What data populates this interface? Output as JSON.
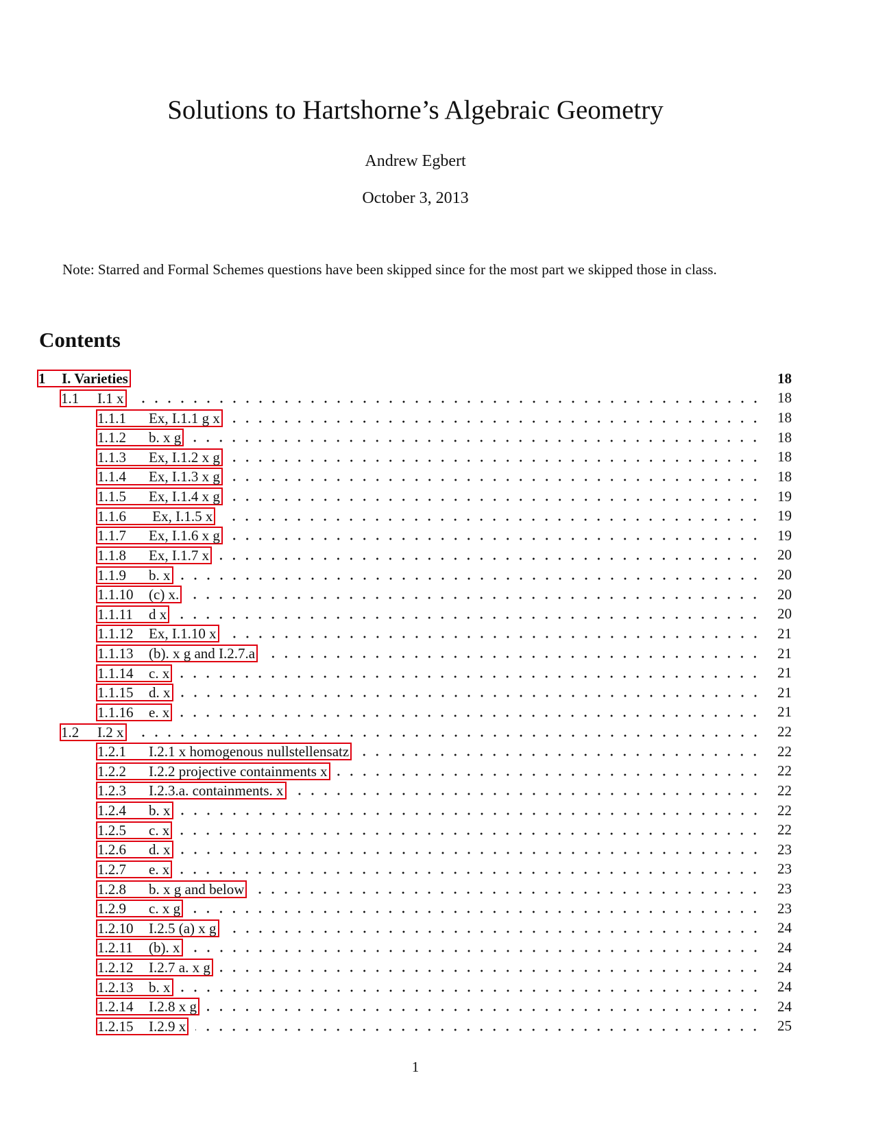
{
  "title": "Solutions to Hartshorne’s Algebraic Geometry",
  "author": "Andrew Egbert",
  "date": "October 3, 2013",
  "note": "Note: Starred and Formal Schemes questions have been skipped since for the most part we skipped those in class.",
  "contents_heading": "Contents",
  "link_border_color": "#e00010",
  "toc": [
    {
      "level": 1,
      "num": "1",
      "title": "I. Varieties",
      "page": "18"
    },
    {
      "level": 2,
      "num": "1.1",
      "title": "I.1 x",
      "page": "18"
    },
    {
      "level": 3,
      "num": "1.1.1",
      "title": "Ex, I.1.1 g x",
      "page": "18"
    },
    {
      "level": 3,
      "num": "1.1.2",
      "title": "b. x g",
      "page": "18"
    },
    {
      "level": 3,
      "num": "1.1.3",
      "title": "Ex, I.1.2 x g",
      "page": "18"
    },
    {
      "level": 3,
      "num": "1.1.4",
      "title": "Ex, I.1.3 x g",
      "page": "18"
    },
    {
      "level": 3,
      "num": "1.1.5",
      "title": "Ex, I.1.4 x g",
      "page": "19"
    },
    {
      "level": 3,
      "num": "1.1.6",
      "title": " Ex, I.1.5 x",
      "page": "19"
    },
    {
      "level": 3,
      "num": "1.1.7",
      "title": "Ex, I.1.6 x g",
      "page": "19"
    },
    {
      "level": 3,
      "num": "1.1.8",
      "title": "Ex, I.1.7 x",
      "page": "20"
    },
    {
      "level": 3,
      "num": "1.1.9",
      "title": "b. x",
      "page": "20"
    },
    {
      "level": 3,
      "num": "1.1.10",
      "title": "(c) x.",
      "page": "20"
    },
    {
      "level": 3,
      "num": "1.1.11",
      "title": "d x",
      "page": "20"
    },
    {
      "level": 3,
      "num": "1.1.12",
      "title": "Ex, I.1.10 x",
      "page": "21"
    },
    {
      "level": 3,
      "num": "1.1.13",
      "title": "(b). x g and I.2.7.a",
      "page": "21"
    },
    {
      "level": 3,
      "num": "1.1.14",
      "title": "c. x",
      "page": "21"
    },
    {
      "level": 3,
      "num": "1.1.15",
      "title": "d. x",
      "page": "21"
    },
    {
      "level": 3,
      "num": "1.1.16",
      "title": "e. x",
      "page": "21"
    },
    {
      "level": 2,
      "num": "1.2",
      "title": "I.2 x",
      "page": "22"
    },
    {
      "level": 3,
      "num": "1.2.1",
      "title": "I.2.1 x homogenous nullstellensatz",
      "page": "22"
    },
    {
      "level": 3,
      "num": "1.2.2",
      "title": "I.2.2 projective containments x",
      "page": "22"
    },
    {
      "level": 3,
      "num": "1.2.3",
      "title": "I.2.3.a. containments. x",
      "page": "22"
    },
    {
      "level": 3,
      "num": "1.2.4",
      "title": "b. x",
      "page": "22"
    },
    {
      "level": 3,
      "num": "1.2.5",
      "title": "c. x",
      "page": "22"
    },
    {
      "level": 3,
      "num": "1.2.6",
      "title": "d. x",
      "page": "23"
    },
    {
      "level": 3,
      "num": "1.2.7",
      "title": "e. x",
      "page": "23"
    },
    {
      "level": 3,
      "num": "1.2.8",
      "title": "b. x g and below",
      "page": "23"
    },
    {
      "level": 3,
      "num": "1.2.9",
      "title": "c. x g",
      "page": "23"
    },
    {
      "level": 3,
      "num": "1.2.10",
      "title": "I.2.5 (a) x g",
      "page": "24"
    },
    {
      "level": 3,
      "num": "1.2.11",
      "title": "(b). x",
      "page": "24"
    },
    {
      "level": 3,
      "num": "1.2.12",
      "title": "I.2.7 a. x g",
      "page": "24"
    },
    {
      "level": 3,
      "num": "1.2.13",
      "title": "b. x",
      "page": "24"
    },
    {
      "level": 3,
      "num": "1.2.14",
      "title": "I.2.8 x g",
      "page": "24"
    },
    {
      "level": 3,
      "num": "1.2.15",
      "title": "I.2.9 x",
      "page": "25"
    }
  ],
  "page_number": "1"
}
